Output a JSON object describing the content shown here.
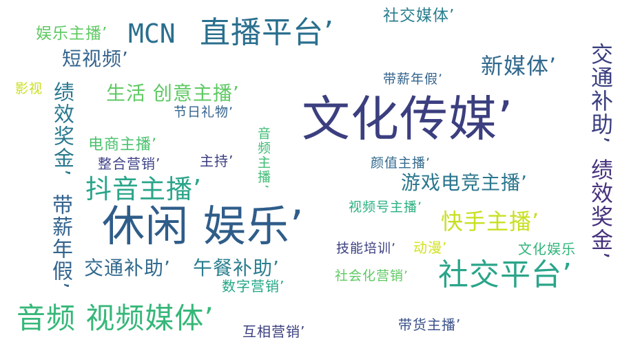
{
  "words": [
    {
      "id": "wenhua-chuanmei",
      "text": "文化传媒’",
      "color": "#3b3f7f"
    },
    {
      "id": "xiuxian-yule",
      "text": "休闲 娱乐’",
      "color": "#2f5d8a"
    },
    {
      "id": "zhibo-pingtai",
      "text": "直播平台’",
      "color": "#2a6f8e"
    },
    {
      "id": "mcn",
      "text": "MCN",
      "color": "#2a6f8e"
    },
    {
      "id": "shejiao-pingtai",
      "text": "社交平台’",
      "color": "#2aa58a"
    },
    {
      "id": "yinpin-shipin-meiti",
      "text": "音频 视频媒体’",
      "color": "#36b779"
    },
    {
      "id": "douyin-zhubo",
      "text": "抖音主播’",
      "color": "#2aa58a"
    },
    {
      "id": "xin-meiti",
      "text": "新媒体’",
      "color": "#31698e"
    },
    {
      "id": "youxi-dianjing-zhubo",
      "text": "游戏电竞主播’",
      "color": "#2b768e"
    },
    {
      "id": "kuaishou-zhubo",
      "text": "快手主播’",
      "color": "#c8e020"
    },
    {
      "id": "jiaotong-buzhu",
      "text": "交通补助’",
      "color": "#31698e"
    },
    {
      "id": "wucan-buzhu",
      "text": "午餐补助’",
      "color": "#2a7e8e"
    },
    {
      "id": "shenghuo-chuangyi-zhubo",
      "text": "生活 创意主播’",
      "color": "#5ec962"
    },
    {
      "id": "duan-shipin",
      "text": "短视频’",
      "color": "#33638d"
    },
    {
      "id": "shejiao-meiti",
      "text": "社交媒体’",
      "color": "#2a7e8e"
    },
    {
      "id": "yule-zhubo",
      "text": "娱乐主播’",
      "color": "#5ec962"
    },
    {
      "id": "daixin-nianjia-top",
      "text": "带薪年假’",
      "color": "#33638d"
    },
    {
      "id": "jieri-liwu",
      "text": "节日礼物’",
      "color": "#33638d"
    },
    {
      "id": "dianshang-zhubo",
      "text": "电商主播’",
      "color": "#4ac16d"
    },
    {
      "id": "zhenghe-yingxiao",
      "text": "整合营销’",
      "color": "#404387"
    },
    {
      "id": "zhuchi",
      "text": "主持’",
      "color": "#3b3f7f"
    },
    {
      "id": "yanzhi-zhubo",
      "text": "颜值主播’",
      "color": "#31698e"
    },
    {
      "id": "shipinhao-zhubo",
      "text": "视频号主播’",
      "color": "#2ab07f"
    },
    {
      "id": "jineng-peixun",
      "text": "技能培训’",
      "color": "#3b3f7f"
    },
    {
      "id": "dongman",
      "text": "动漫’",
      "color": "#d2e21b"
    },
    {
      "id": "wenhua-yule",
      "text": "文化娱乐",
      "color": "#31b57b"
    },
    {
      "id": "shuzi-yingxiao",
      "text": "数字营销’",
      "color": "#21a685"
    },
    {
      "id": "shehuihua-yingxiao",
      "text": "社会化营销’",
      "color": "#5ec962"
    },
    {
      "id": "huxiang-yingxiao",
      "text": "互相营销’",
      "color": "#3b3f7f"
    },
    {
      "id": "daihuo-zhubo",
      "text": "带货主播’",
      "color": "#3b528b"
    },
    {
      "id": "yingshi",
      "text": "影视",
      "color": "#c8e020"
    },
    {
      "id": "jixiao-jiangjin-left",
      "text": "绩效奖金’",
      "color": "#2a788e"
    },
    {
      "id": "daixin-nianjia-left",
      "text": "带薪年假’",
      "color": "#33638d"
    },
    {
      "id": "yinpin-zhubo",
      "text": "音频主播’",
      "color": "#3dbc74"
    },
    {
      "id": "jiaotong-buzhu-right",
      "text": "交通补助’",
      "color": "#3b3f7f"
    },
    {
      "id": "jixiao-jiangjin-right",
      "text": "绩效奖金’",
      "color": "#46327e"
    }
  ]
}
